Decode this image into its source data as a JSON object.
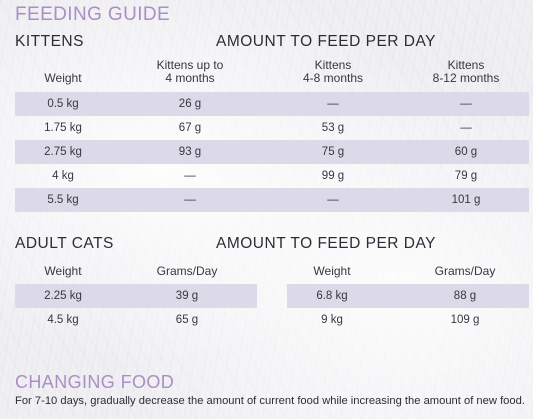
{
  "title": "FEEDING GUIDE",
  "kittens": {
    "heading": "KITTENS",
    "amount_heading": "AMOUNT TO FEED PER DAY",
    "columns": [
      "Weight",
      "Kittens up to\n4 months",
      "Kittens\n4-8 months",
      "Kittens\n8-12 months"
    ],
    "rows": [
      [
        "0.5 kg",
        "26 g",
        "—",
        "—"
      ],
      [
        "1.75 kg",
        "67 g",
        "53 g",
        "—"
      ],
      [
        "2.75 kg",
        "93 g",
        "75 g",
        "60 g"
      ],
      [
        "4 kg",
        "—",
        "99 g",
        "79 g"
      ],
      [
        "5.5 kg",
        "—",
        "—",
        "101 g"
      ]
    ]
  },
  "adult": {
    "heading": "ADULT CATS",
    "amount_heading": "AMOUNT TO FEED PER DAY",
    "columns": [
      "Weight",
      "Grams/Day",
      "Weight",
      "Grams/Day"
    ],
    "rows": [
      [
        "2.25 kg",
        "39 g",
        "6.8 kg",
        "88 g"
      ],
      [
        "4.5 kg",
        "65 g",
        "9 kg",
        "109 g"
      ]
    ]
  },
  "changing": {
    "heading": "CHANGING FOOD",
    "text": "For 7-10 days, gradually decrease the amount of current food while increasing the amount of new food."
  },
  "colors": {
    "title_purple": "#a98fc4",
    "row_band": "#dcdae8",
    "text": "#3a3540"
  }
}
